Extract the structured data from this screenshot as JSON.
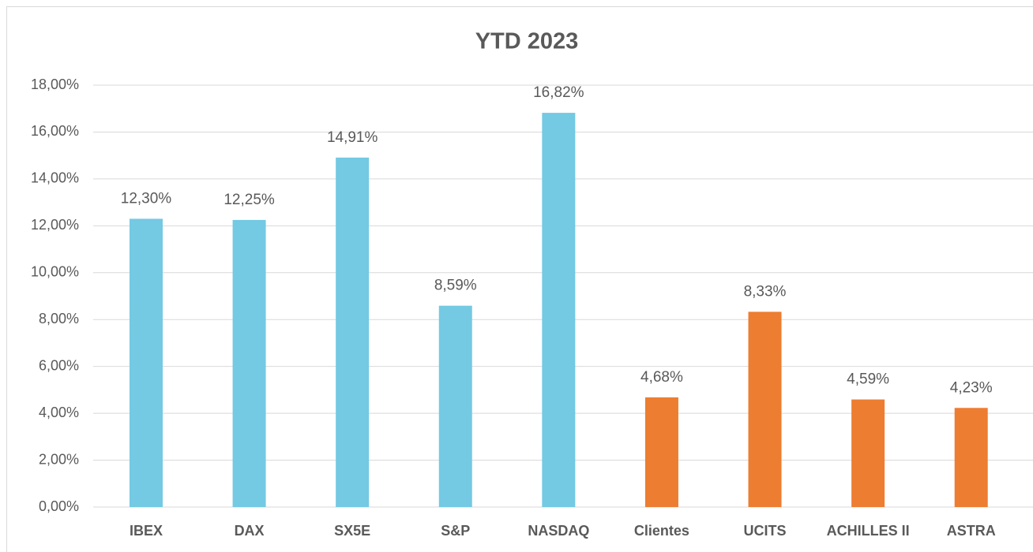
{
  "chart_data": {
    "type": "bar",
    "title": "YTD 2023",
    "categories": [
      "IBEX",
      "DAX",
      "SX5E",
      "S&P",
      "NASDAQ",
      "Clientes",
      "UCITS",
      "ACHILLES II",
      "ASTRA"
    ],
    "values": [
      12.3,
      12.25,
      14.91,
      8.59,
      16.82,
      4.68,
      8.33,
      4.59,
      4.23
    ],
    "value_labels": [
      "12,30%",
      "12,25%",
      "14,91%",
      "8,59%",
      "16,82%",
      "4,68%",
      "8,33%",
      "4,59%",
      "4,23%"
    ],
    "colors": [
      "#74c9e3",
      "#74c9e3",
      "#74c9e3",
      "#74c9e3",
      "#74c9e3",
      "#ed7d31",
      "#ed7d31",
      "#ed7d31",
      "#ed7d31"
    ],
    "ylim": [
      0,
      18
    ],
    "yticks": [
      {
        "value": 0,
        "label": "0,00%"
      },
      {
        "value": 2,
        "label": "2,00%"
      },
      {
        "value": 4,
        "label": "4,00%"
      },
      {
        "value": 6,
        "label": "6,00%"
      },
      {
        "value": 8,
        "label": "8,00%"
      },
      {
        "value": 10,
        "label": "10,00%"
      },
      {
        "value": 12,
        "label": "12,00%"
      },
      {
        "value": 14,
        "label": "14,00%"
      },
      {
        "value": 16,
        "label": "16,00%"
      },
      {
        "value": 18,
        "label": "18,00%"
      }
    ],
    "grid": true
  }
}
